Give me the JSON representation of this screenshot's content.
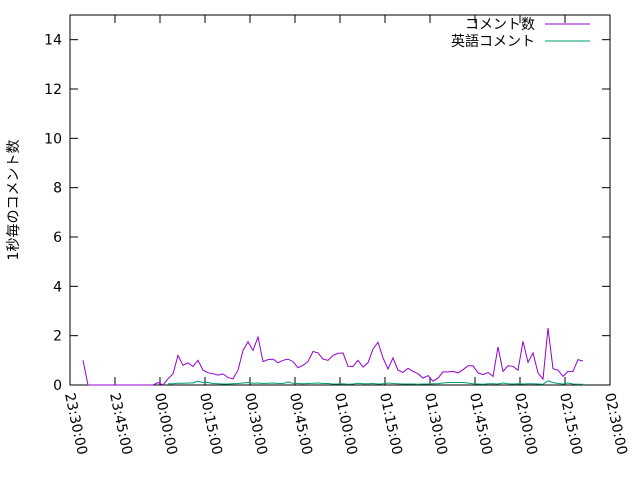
{
  "chart_data": {
    "type": "line",
    "title": "",
    "xlabel": "",
    "ylabel": "1秒毎のコメント数",
    "ylim": [
      0,
      15
    ],
    "yticks": [
      0,
      2,
      4,
      6,
      8,
      10,
      12,
      14
    ],
    "xlim": [
      "23:30:00",
      "02:30:00"
    ],
    "xticks": [
      "23:30:00",
      "23:45:00",
      "00:00:00",
      "00:15:00",
      "00:30:00",
      "00:45:00",
      "01:00:00",
      "01:15:00",
      "01:30:00",
      "01:45:00",
      "02:00:00",
      "02:15:00",
      "02:30:00"
    ],
    "grid": false,
    "legend_position": "top-right",
    "x": [
      "23:34:20",
      "23:36:00",
      "23:37:40",
      "23:39:20",
      "23:41:00",
      "23:42:40",
      "23:44:20",
      "23:46:00",
      "23:47:40",
      "23:49:20",
      "23:51:00",
      "23:52:40",
      "23:54:20",
      "23:56:00",
      "23:57:40",
      "23:59:20",
      "00:01:00",
      "00:02:40",
      "00:04:20",
      "00:06:00",
      "00:07:40",
      "00:09:20",
      "00:11:00",
      "00:12:40",
      "00:14:20",
      "00:16:00",
      "00:17:40",
      "00:19:20",
      "00:21:00",
      "00:22:40",
      "00:24:20",
      "00:26:00",
      "00:27:40",
      "00:29:20",
      "00:31:00",
      "00:32:40",
      "00:34:20",
      "00:36:00",
      "00:37:40",
      "00:39:20",
      "00:41:00",
      "00:42:40",
      "00:44:20",
      "00:46:00",
      "00:47:40",
      "00:49:20",
      "00:51:00",
      "00:52:40",
      "00:54:20",
      "00:56:00",
      "00:57:40",
      "00:59:20",
      "01:01:00",
      "01:02:40",
      "01:04:20",
      "01:06:00",
      "01:07:40",
      "01:09:20",
      "01:11:00",
      "01:12:40",
      "01:14:20",
      "01:16:00",
      "01:17:40",
      "01:19:20",
      "01:21:00",
      "01:22:40",
      "01:24:20",
      "01:26:00",
      "01:27:40",
      "01:29:20",
      "01:31:00",
      "01:32:40",
      "01:34:20",
      "01:36:00",
      "01:37:40",
      "01:39:20",
      "01:41:00",
      "01:42:40",
      "01:44:20",
      "01:46:00",
      "01:47:40",
      "01:49:20",
      "01:51:00",
      "01:52:40",
      "01:54:20",
      "01:56:00",
      "01:57:40",
      "01:59:20",
      "02:01:00",
      "02:02:40",
      "02:04:20",
      "02:06:00",
      "02:07:40",
      "02:09:20",
      "02:11:00",
      "02:12:40",
      "02:14:20",
      "02:16:00",
      "02:17:40",
      "02:19:20",
      "02:21:00"
    ],
    "series": [
      {
        "name": "コメント数",
        "color": "#9400d3",
        "values": [
          1.0,
          0,
          0,
          0,
          0,
          0,
          0,
          0,
          0,
          0,
          0,
          0,
          0,
          0,
          0,
          0.1,
          0,
          0.25,
          0.45,
          1.2,
          0.8,
          0.9,
          0.75,
          1.0,
          0.6,
          0.5,
          0.46,
          0.4,
          0.45,
          0.3,
          0.25,
          0.6,
          1.4,
          1.75,
          1.4,
          1.95,
          0.95,
          1.03,
          1.05,
          0.9,
          1.0,
          1.05,
          0.95,
          0.7,
          0.8,
          0.95,
          1.36,
          1.3,
          1.05,
          1.0,
          1.2,
          1.28,
          1.3,
          0.76,
          0.75,
          1.0,
          0.73,
          0.9,
          1.46,
          1.73,
          1.1,
          0.65,
          1.1,
          0.6,
          0.51,
          0.68,
          0.55,
          0.46,
          0.28,
          0.38,
          0.16,
          0.28,
          0.53,
          0.53,
          0.55,
          0.49,
          0.62,
          0.78,
          0.78,
          0.49,
          0.42,
          0.51,
          0.35,
          1.54,
          0.55,
          0.78,
          0.76,
          0.6,
          1.77,
          0.92,
          1.3,
          0.49,
          0.24,
          2.31,
          0.66,
          0.6,
          0.35,
          0.55,
          0.55,
          1.03,
          0.97
        ]
      },
      {
        "name": "英語コメント",
        "color": "#009e73",
        "values": [
          null,
          null,
          null,
          null,
          null,
          null,
          null,
          null,
          null,
          null,
          null,
          null,
          null,
          null,
          null,
          null,
          null,
          0.05,
          0.05,
          0.07,
          0.07,
          0.08,
          0.08,
          0.16,
          0.1,
          0.1,
          0.06,
          0.05,
          0.04,
          0.04,
          0.05,
          0.06,
          0.08,
          0.1,
          0.07,
          0.08,
          0.06,
          0.07,
          0.08,
          0.06,
          0.06,
          0.12,
          0.07,
          0.06,
          0.05,
          0.06,
          0.07,
          0.08,
          0.06,
          0.06,
          0.04,
          0.04,
          0.05,
          0.03,
          0.04,
          0.07,
          0.05,
          0.05,
          0.06,
          0.04,
          0.05,
          0.08,
          0.06,
          0.05,
          0.04,
          0.04,
          0.04,
          0.03,
          0.04,
          0.04,
          0.05,
          0.05,
          0.08,
          0.1,
          0.1,
          0.1,
          0.1,
          0.08,
          0.05,
          0.04,
          0.03,
          0.05,
          0.05,
          0.04,
          0.08,
          0.05,
          0.04,
          0.05,
          0.04,
          0.05,
          0.05,
          0.04,
          0.03,
          0.17,
          0.1,
          0.06,
          0.04,
          0.08,
          0.04,
          0.03,
          0.03
        ]
      }
    ]
  }
}
